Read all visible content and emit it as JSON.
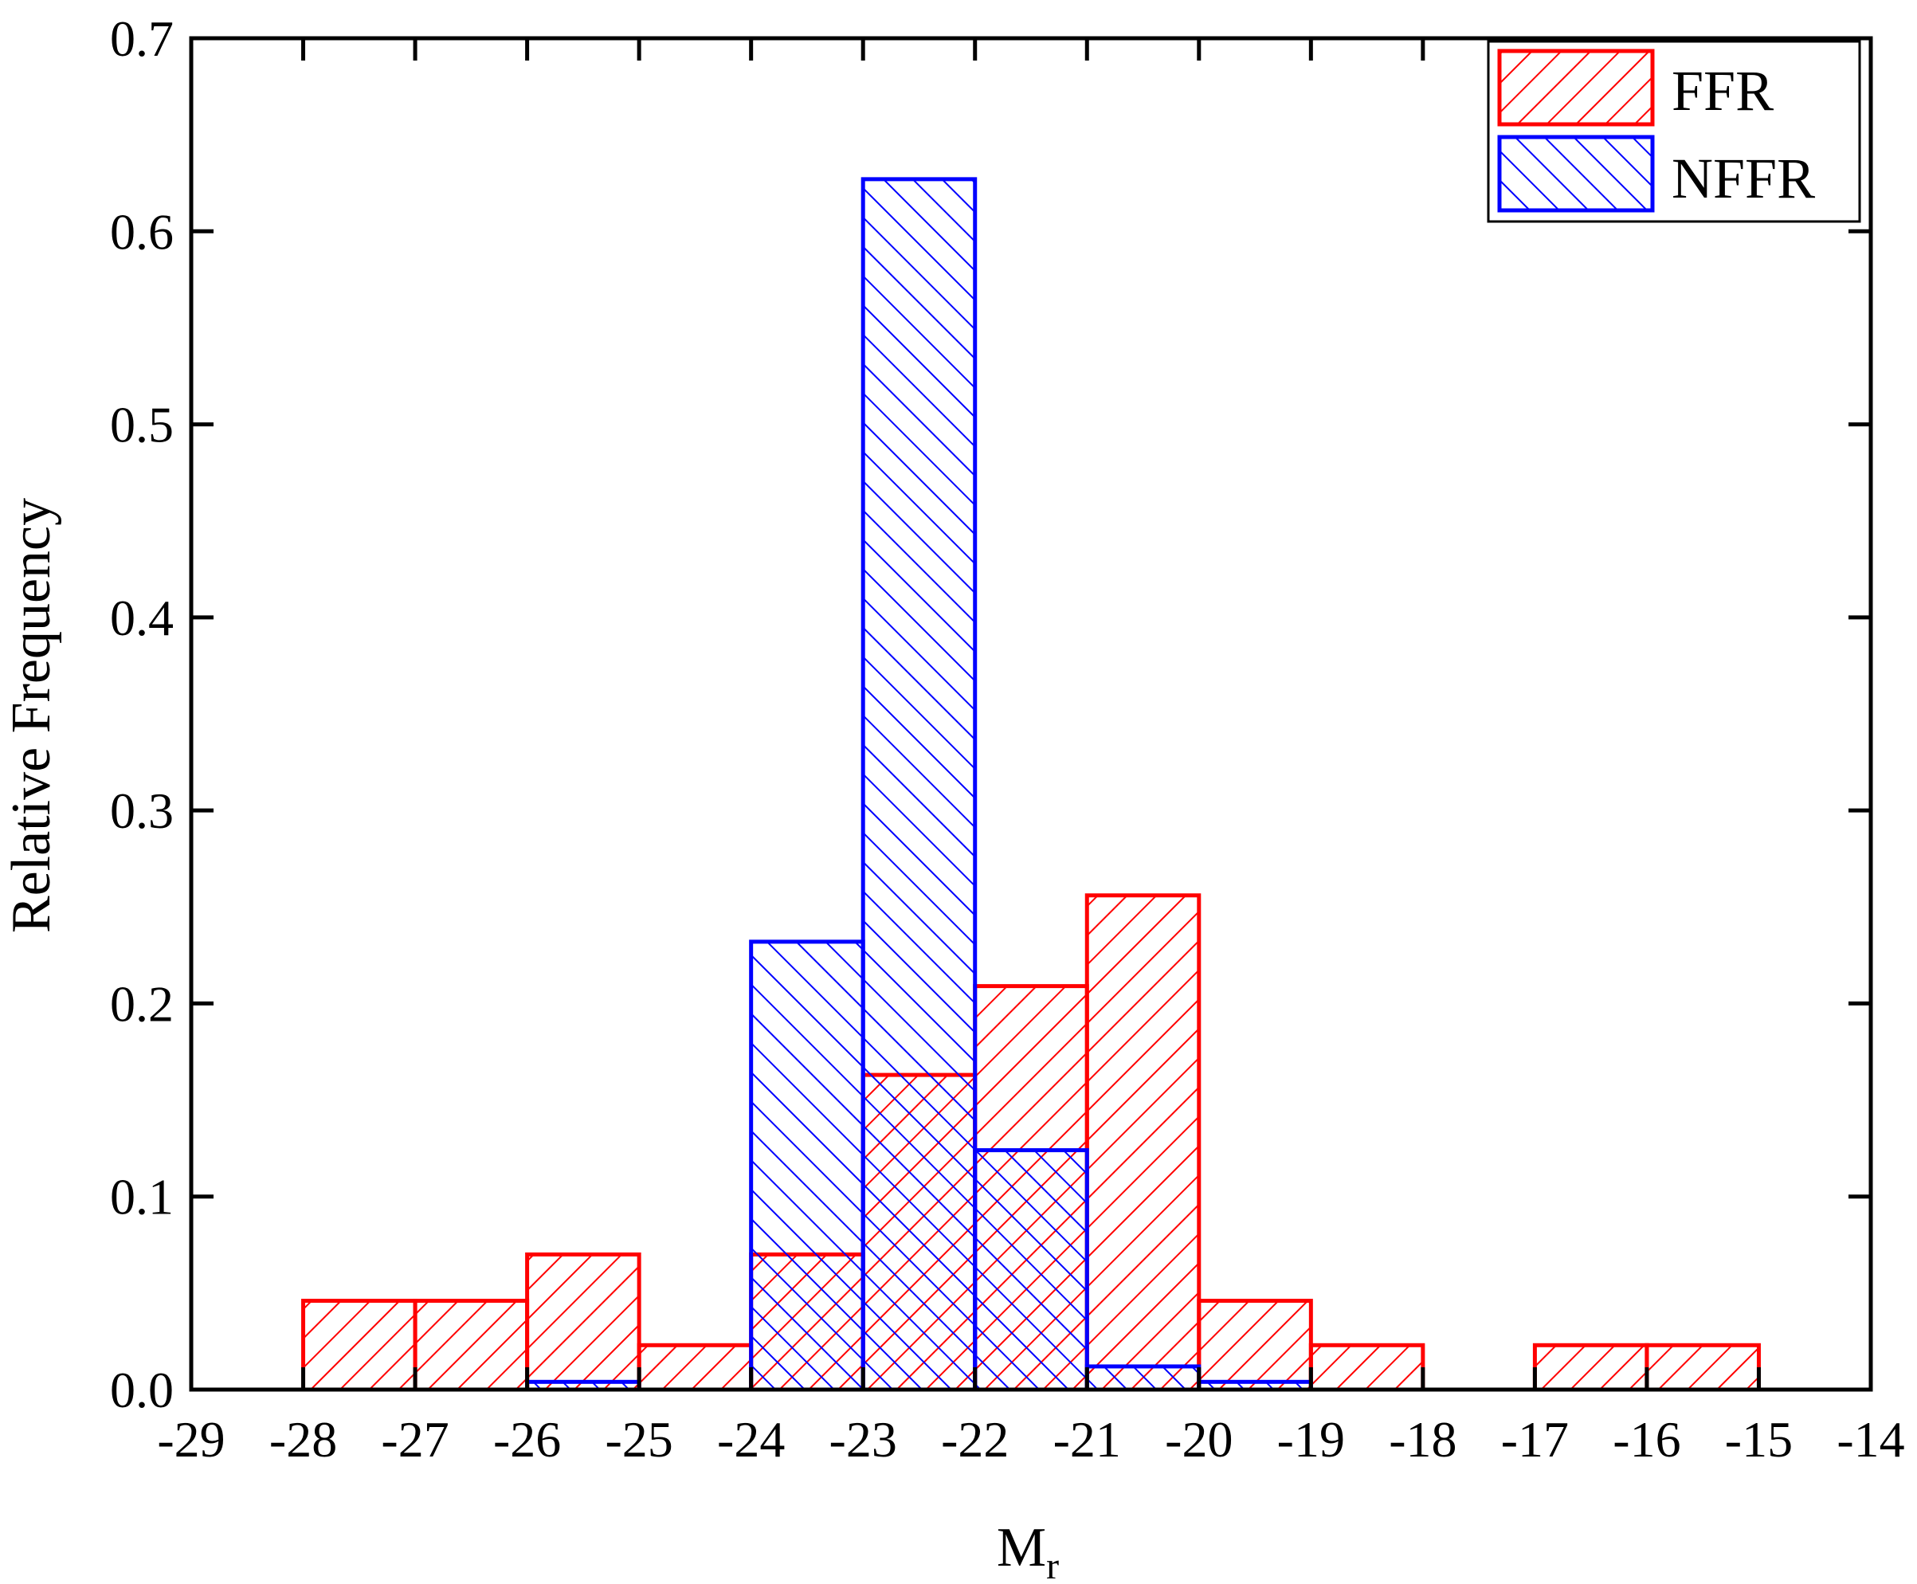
{
  "chart_data": {
    "type": "bar",
    "xlabel_main": "M",
    "xlabel_sub": "r",
    "ylabel": "Relative Frequency",
    "xlim": [
      -29,
      -14
    ],
    "ylim": [
      0,
      0.7
    ],
    "xticks": [
      -29,
      -28,
      -27,
      -26,
      -25,
      -24,
      -23,
      -22,
      -21,
      -20,
      -19,
      -18,
      -17,
      -16,
      -15,
      -14
    ],
    "xtick_labels": [
      "-29",
      "-28",
      "-27",
      "-26",
      "-25",
      "-24",
      "-23",
      "-22",
      "-21",
      "-20",
      "-19",
      "-18",
      "-17",
      "-16",
      "-15",
      "-14"
    ],
    "yticks": [
      0,
      0.1,
      0.2,
      0.3,
      0.4,
      0.5,
      0.6,
      0.7
    ],
    "ytick_labels": [
      "0.0",
      "0.1",
      "0.2",
      "0.3",
      "0.4",
      "0.5",
      "0.6",
      "0.7"
    ],
    "grid": false,
    "legend_position": "top-right",
    "series": [
      {
        "name": "FFR",
        "color": "#ff0000",
        "hatch": "forward-diagonal",
        "bins": [
          {
            "x0": -28,
            "x1": -27,
            "value": 0.046
          },
          {
            "x0": -27,
            "x1": -26,
            "value": 0.046
          },
          {
            "x0": -26,
            "x1": -25,
            "value": 0.07
          },
          {
            "x0": -25,
            "x1": -24,
            "value": 0.023
          },
          {
            "x0": -24,
            "x1": -23,
            "value": 0.07
          },
          {
            "x0": -23,
            "x1": -22,
            "value": 0.163
          },
          {
            "x0": -22,
            "x1": -21,
            "value": 0.209
          },
          {
            "x0": -21,
            "x1": -20,
            "value": 0.256
          },
          {
            "x0": -20,
            "x1": -19,
            "value": 0.046
          },
          {
            "x0": -19,
            "x1": -18,
            "value": 0.023
          },
          {
            "x0": -17,
            "x1": -16,
            "value": 0.023
          },
          {
            "x0": -16,
            "x1": -15,
            "value": 0.023
          }
        ]
      },
      {
        "name": "NFFR",
        "color": "#0000ff",
        "hatch": "back-diagonal",
        "bins": [
          {
            "x0": -26,
            "x1": -25,
            "value": 0.004
          },
          {
            "x0": -24,
            "x1": -23,
            "value": 0.232
          },
          {
            "x0": -23,
            "x1": -22,
            "value": 0.627
          },
          {
            "x0": -22,
            "x1": -21,
            "value": 0.124
          },
          {
            "x0": -21,
            "x1": -20,
            "value": 0.012
          },
          {
            "x0": -20,
            "x1": -19,
            "value": 0.004
          }
        ]
      }
    ]
  }
}
